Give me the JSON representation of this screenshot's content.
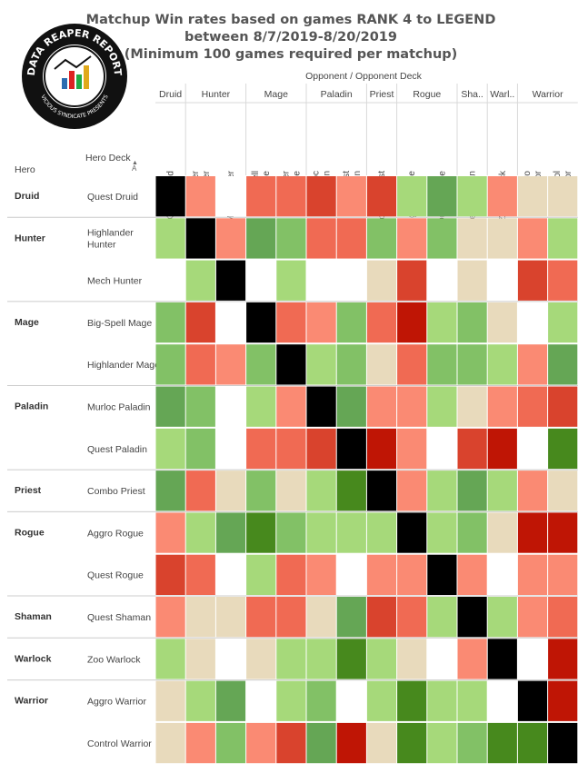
{
  "title_lines": [
    "Matchup Win rates based on games RANK 4 to LEGEND",
    "between 8/7/2019-8/20/2019",
    "(Minimum 100 games required per matchup)"
  ],
  "logo": {
    "text_top": "DATA REAPER REPORT",
    "text_bottom": "VICIOUS SYNDICATE PRESENTS"
  },
  "header": {
    "opponent_label": "Opponent  /  Opponent Deck",
    "hero_label": "Hero",
    "hero_deck_label": "Hero Deck",
    "sort_icon": "sort-icon"
  },
  "chart_data": {
    "type": "heatmap",
    "title": "Matchup Win rates based on games RANK 4 to LEGEND between 8/7/2019-8/20/2019 (Minimum 100 games required per matchup)",
    "column_groups": [
      {
        "label": "Druid",
        "decks": [
          "Quest Druid"
        ]
      },
      {
        "label": "Hunter",
        "decks": [
          "Highlander Hunter",
          "Mech Hunter"
        ]
      },
      {
        "label": "Mage",
        "decks": [
          "Big-Spell Mage",
          "Highlander Mage"
        ]
      },
      {
        "label": "Paladin",
        "decks": [
          "Murloc Paladin",
          "Quest Paladin"
        ]
      },
      {
        "label": "Priest",
        "decks": [
          "Combo Priest"
        ]
      },
      {
        "label": "Rogue",
        "decks": [
          "Aggro Rogue",
          "Quest Rogue"
        ]
      },
      {
        "label": "Sha..",
        "decks": [
          "Quest Shaman"
        ]
      },
      {
        "label": "Warl..",
        "decks": [
          "Zoo Warlock"
        ]
      },
      {
        "label": "Warrior",
        "decks": [
          "Aggro Warrior",
          "Control Warrior"
        ]
      }
    ],
    "row_groups": [
      {
        "hero": "Druid",
        "decks": [
          "Quest Druid"
        ]
      },
      {
        "hero": "Hunter",
        "decks": [
          "Highlander Hunter",
          "Mech Hunter"
        ]
      },
      {
        "hero": "Mage",
        "decks": [
          "Big-Spell Mage",
          "Highlander Mage"
        ]
      },
      {
        "hero": "Paladin",
        "decks": [
          "Murloc Paladin",
          "Quest Paladin"
        ]
      },
      {
        "hero": "Priest",
        "decks": [
          "Combo Priest"
        ]
      },
      {
        "hero": "Rogue",
        "decks": [
          "Aggro Rogue",
          "Quest Rogue"
        ]
      },
      {
        "hero": "Shaman",
        "decks": [
          "Quest Shaman"
        ]
      },
      {
        "hero": "Warlock",
        "decks": [
          "Zoo Warlock"
        ]
      },
      {
        "hero": "Warrior",
        "decks": [
          "Aggro Warrior",
          "Control Warrior"
        ]
      }
    ],
    "color_scale": {
      "X": "#000000",
      "W": "#ffffff",
      "T": "#e8dabc",
      "1": "#a6d97a",
      "2": "#82c166",
      "3": "#65a655",
      "4": "#47891d",
      "5": "#fa8a73",
      "6": "#f06a53",
      "7": "#d9432d",
      "8": "#bf1505"
    },
    "cells": [
      [
        "X",
        "5",
        "W",
        "6",
        "6",
        "7",
        "5",
        "7",
        "1",
        "3",
        "1",
        "5",
        "T",
        "T"
      ],
      [
        "1",
        "X",
        "5",
        "3",
        "2",
        "6",
        "6",
        "2",
        "5",
        "2",
        "T",
        "T",
        "5",
        "1"
      ],
      [
        "W",
        "1",
        "X",
        "W",
        "1",
        "W",
        "W",
        "T",
        "7",
        "W",
        "T",
        "W",
        "7",
        "6"
      ],
      [
        "2",
        "7",
        "W",
        "X",
        "6",
        "5",
        "2",
        "6",
        "8",
        "1",
        "2",
        "T",
        "W",
        "1"
      ],
      [
        "2",
        "6",
        "5",
        "2",
        "X",
        "1",
        "2",
        "T",
        "6",
        "2",
        "2",
        "1",
        "5",
        "3"
      ],
      [
        "3",
        "2",
        "W",
        "1",
        "5",
        "X",
        "3",
        "5",
        "5",
        "1",
        "T",
        "5",
        "6",
        "7"
      ],
      [
        "1",
        "2",
        "W",
        "6",
        "6",
        "7",
        "X",
        "8",
        "5",
        "W",
        "7",
        "8",
        "W",
        "4"
      ],
      [
        "3",
        "6",
        "T",
        "2",
        "T",
        "1",
        "4",
        "X",
        "5",
        "1",
        "3",
        "1",
        "5",
        "T"
      ],
      [
        "5",
        "1",
        "3",
        "4",
        "2",
        "1",
        "1",
        "1",
        "X",
        "1",
        "2",
        "T",
        "8",
        "8"
      ],
      [
        "7",
        "6",
        "W",
        "1",
        "6",
        "5",
        "W",
        "5",
        "5",
        "X",
        "5",
        "W",
        "5",
        "5"
      ],
      [
        "5",
        "T",
        "T",
        "6",
        "6",
        "T",
        "3",
        "7",
        "6",
        "1",
        "X",
        "1",
        "5",
        "6"
      ],
      [
        "1",
        "T",
        "W",
        "T",
        "1",
        "1",
        "4",
        "1",
        "T",
        "W",
        "5",
        "X",
        "W",
        "8"
      ],
      [
        "T",
        "1",
        "3",
        "W",
        "1",
        "2",
        "W",
        "1",
        "4",
        "1",
        "1",
        "W",
        "X",
        "8"
      ],
      [
        "T",
        "5",
        "2",
        "5",
        "7",
        "3",
        "8",
        "T",
        "4",
        "1",
        "2",
        "4",
        "4",
        "X"
      ]
    ]
  }
}
